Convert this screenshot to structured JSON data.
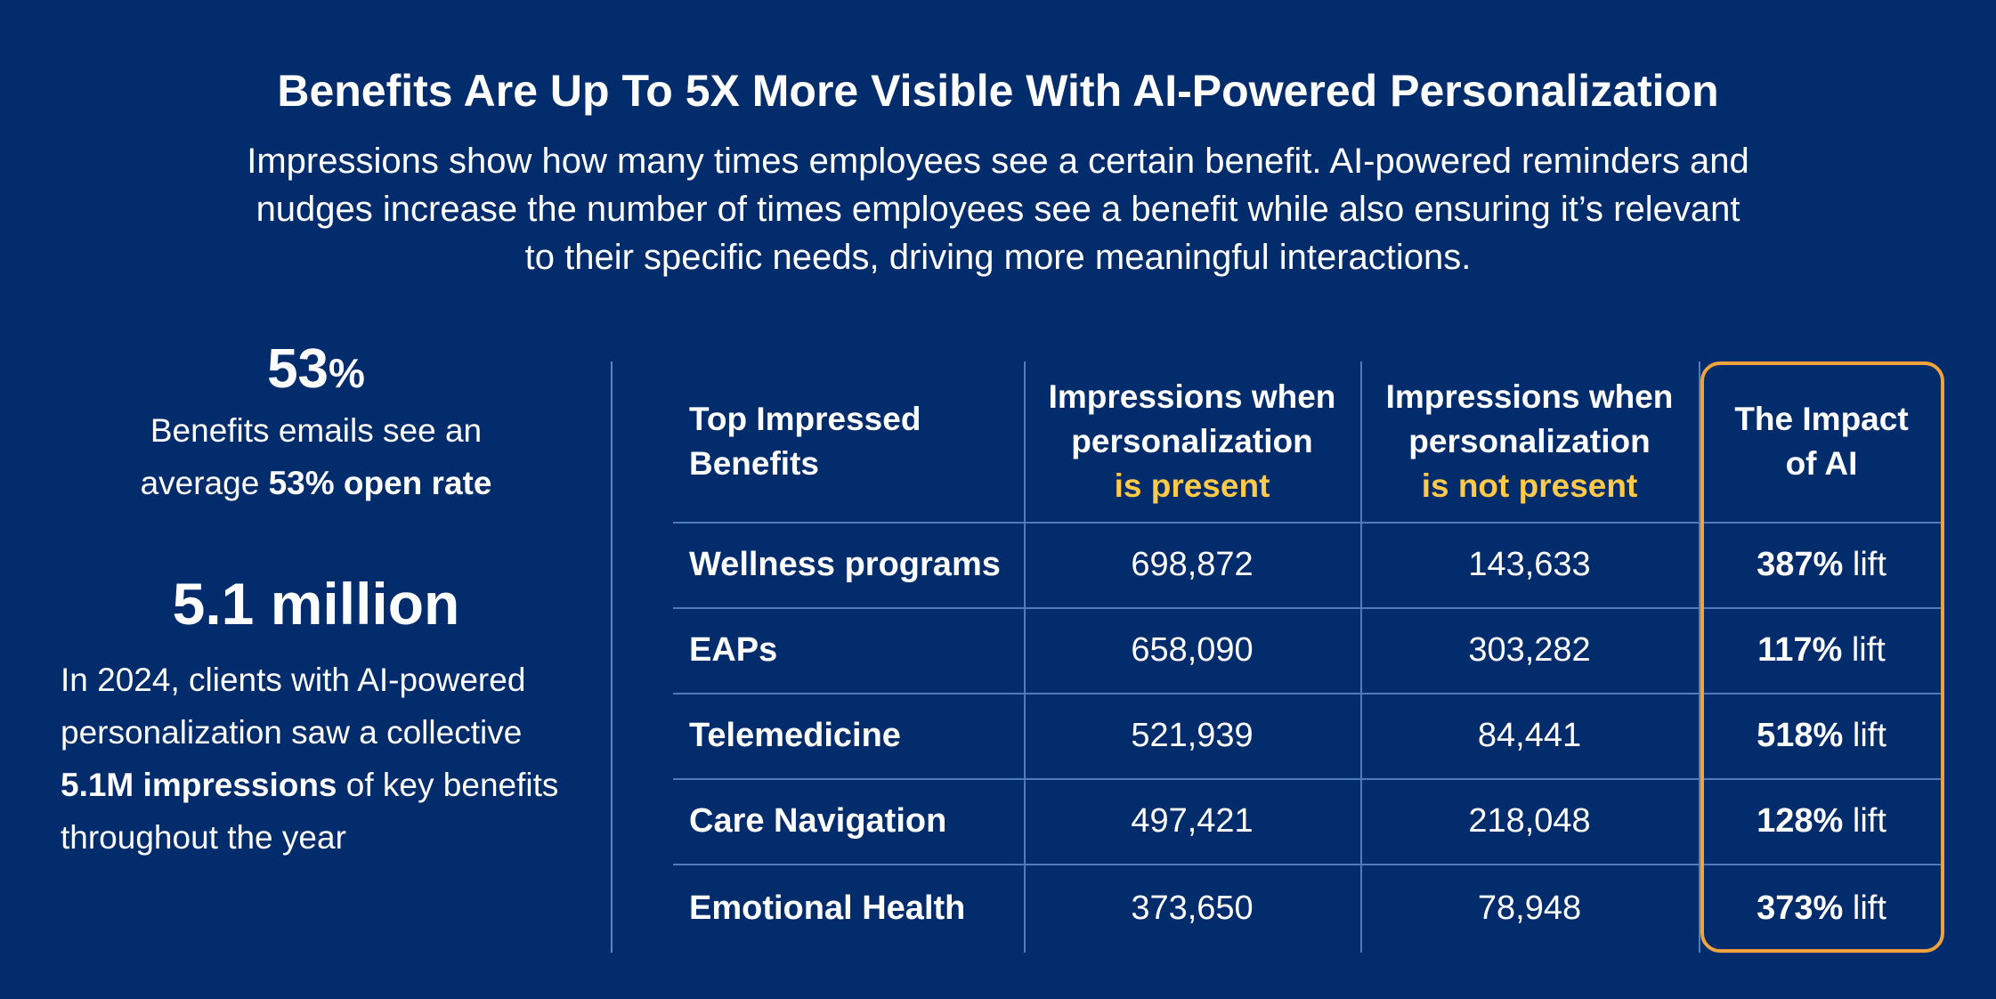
{
  "title": "Benefits Are Up To 5X More Visible With AI-Powered Personalization",
  "intro": {
    "line1": "Impressions show how many times employees see a certain benefit. AI-powered reminders and",
    "line2": "nudges increase the number of times employees see a benefit while also ensuring it’s relevant",
    "line3": "to their specific needs, driving more meaningful interactions."
  },
  "stats": {
    "open_rate": {
      "number": "53",
      "unit": "%",
      "desc_line1": "Benefits emails see an",
      "desc_prefix": "average ",
      "desc_strong": "53% open rate"
    },
    "impressions": {
      "number": "5.1 million",
      "desc_part1": "In 2024, clients with AI-powered personalization saw a collective",
      "desc_strong": "5.1M impressions",
      "desc_part2": " of key benefits throughout the year"
    }
  },
  "table": {
    "headers": {
      "benefit": "Top Impressed Benefits",
      "present_top": "Impressions when personalization",
      "present_highlight": "is present",
      "not_present_top": "Impressions when personalization",
      "not_present_highlight": "is not present",
      "impact": "The Impact of AI"
    },
    "rows": [
      {
        "benefit": "Wellness programs",
        "present": "698,872",
        "not_present": "143,633",
        "lift_value": "387%",
        "lift_word": " lift"
      },
      {
        "benefit": "EAPs",
        "present": "658,090",
        "not_present": "303,282",
        "lift_value": "117%",
        "lift_word": " lift"
      },
      {
        "benefit": "Telemedicine",
        "present": "521,939",
        "not_present": "84,441",
        "lift_value": "518%",
        "lift_word": " lift"
      },
      {
        "benefit": "Care Navigation",
        "present": "497,421",
        "not_present": "218,048",
        "lift_value": "128%",
        "lift_word": " lift"
      },
      {
        "benefit": "Emotional Health",
        "present": "373,650",
        "not_present": "78,948",
        "lift_value": "373%",
        "lift_word": " lift"
      }
    ]
  },
  "colors": {
    "background": "#022c6b",
    "highlight_text": "#ffc94a",
    "impact_border": "#f0a33c",
    "grid_lines": "#4f7cbd"
  }
}
